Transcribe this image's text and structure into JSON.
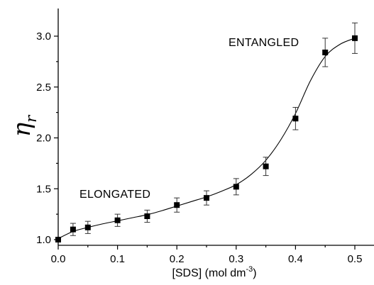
{
  "chart_data": {
    "type": "scatter",
    "xlabel": "[SDS] (mol dm",
    "xlabel_superscript": "-3",
    "xlabel_close": ")",
    "ylabel": "η",
    "ylabel_subscript": "r",
    "xlim": [
      0.0,
      0.5
    ],
    "ylim": [
      1.0,
      3.0
    ],
    "x_ticks": [
      "0.0",
      "0.1",
      "0.2",
      "0.3",
      "0.4",
      "0.5"
    ],
    "y_ticks": [
      "1.0",
      "1.5",
      "2.0",
      "2.5",
      "3.0"
    ],
    "grid": false,
    "annotations": [
      "ELONGATED",
      "ENTANGLED"
    ],
    "series": [
      {
        "x": [
          0.0,
          0.025,
          0.05,
          0.1,
          0.15,
          0.2,
          0.25,
          0.3,
          0.35,
          0.4,
          0.45,
          0.5
        ],
        "y": [
          1.0,
          1.1,
          1.12,
          1.19,
          1.23,
          1.34,
          1.41,
          1.52,
          1.72,
          2.19,
          2.84,
          2.98
        ],
        "error": [
          0,
          0.06,
          0.06,
          0.06,
          0.06,
          0.07,
          0.07,
          0.08,
          0.09,
          0.11,
          0.14,
          0.15
        ]
      }
    ],
    "fit_curve": {
      "x": [
        0.0,
        0.025,
        0.05,
        0.075,
        0.1,
        0.125,
        0.15,
        0.175,
        0.2,
        0.225,
        0.25,
        0.275,
        0.3,
        0.325,
        0.35,
        0.375,
        0.4,
        0.425,
        0.45,
        0.475,
        0.5
      ],
      "y": [
        1.01,
        1.08,
        1.12,
        1.155,
        1.185,
        1.215,
        1.245,
        1.285,
        1.33,
        1.375,
        1.42,
        1.475,
        1.54,
        1.64,
        1.78,
        1.98,
        2.24,
        2.56,
        2.8,
        2.92,
        2.98
      ]
    }
  }
}
